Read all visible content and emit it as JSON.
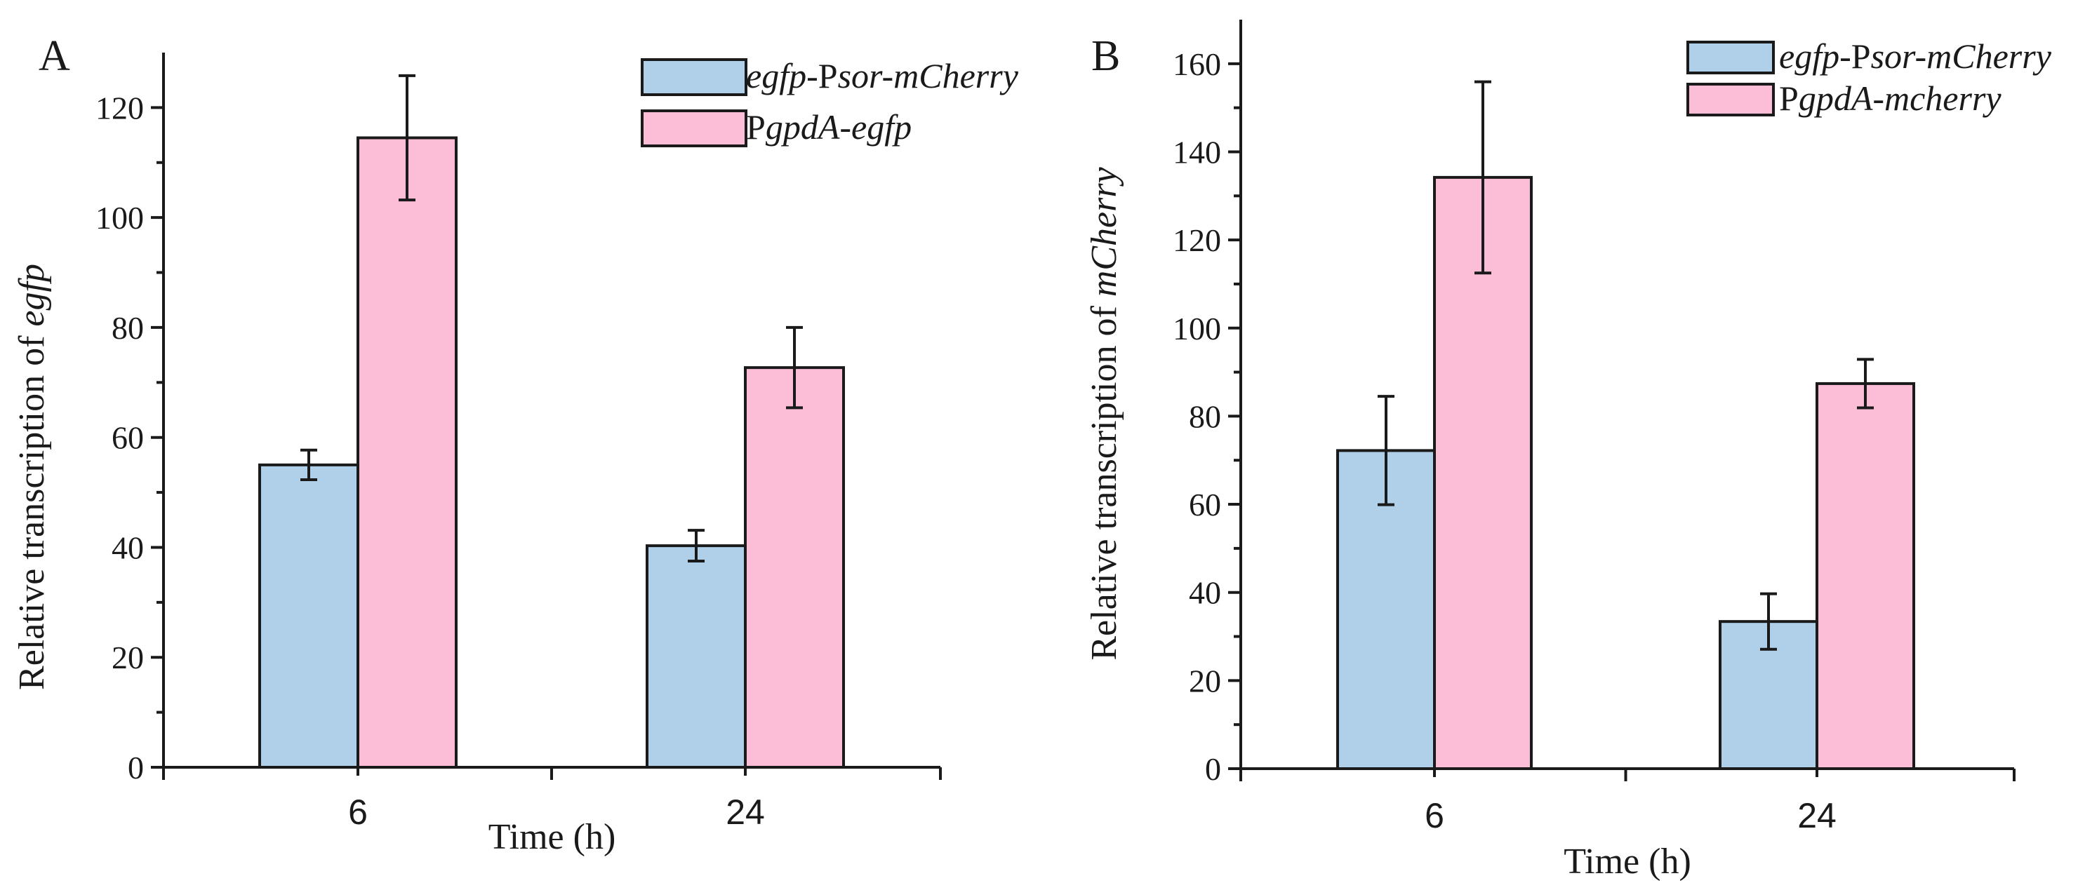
{
  "chart_data": [
    {
      "panel_label": "A",
      "type": "bar",
      "categories": [
        "6",
        "24"
      ],
      "xlabel": "Time (h)",
      "ylabel_prefix": "Relative transcription of ",
      "ylabel_gene": "egfp",
      "ylim": [
        0,
        130
      ],
      "yticks": [
        0,
        20,
        40,
        60,
        80,
        100,
        120
      ],
      "legend_position": "top-right",
      "series": [
        {
          "name": "egfp-Psor-mCherry",
          "legend_parts": [
            {
              "t": "egfp",
              "i": true
            },
            {
              "t": "-P",
              "i": false
            },
            {
              "t": "sor-mCherry",
              "i": true
            }
          ],
          "color": "#b0cfe8",
          "values": [
            55,
            40.3
          ],
          "errors": [
            2.7,
            2.8
          ]
        },
        {
          "name": "PgpdA-egfp",
          "legend_parts": [
            {
              "t": "P",
              "i": false
            },
            {
              "t": "gpdA-egfp",
              "i": true
            }
          ],
          "color": "#fcbdd7",
          "values": [
            114.5,
            72.7
          ],
          "errors": [
            11.3,
            7.3
          ]
        }
      ]
    },
    {
      "panel_label": "B",
      "type": "bar",
      "categories": [
        "6",
        "24"
      ],
      "xlabel": "Time (h)",
      "ylabel_prefix": "Relative transcription of ",
      "ylabel_gene": "mCherry",
      "ylim": [
        0,
        170
      ],
      "yticks": [
        0,
        20,
        40,
        60,
        80,
        100,
        120,
        140,
        160
      ],
      "legend_position": "top-right",
      "series": [
        {
          "name": "egfp-Psor-mCherry",
          "legend_parts": [
            {
              "t": "egfp",
              "i": true
            },
            {
              "t": "-P",
              "i": false
            },
            {
              "t": "sor-mCherry",
              "i": true
            }
          ],
          "color": "#b0cfe8",
          "values": [
            72.2,
            33.4
          ],
          "errors": [
            12.3,
            6.3
          ]
        },
        {
          "name": "PgpdA-mcherry",
          "legend_parts": [
            {
              "t": "P",
              "i": false
            },
            {
              "t": "gpdA-mcherry",
              "i": true
            }
          ],
          "color": "#fcbdd7",
          "values": [
            134.2,
            87.4
          ],
          "errors": [
            21.7,
            5.5
          ]
        }
      ]
    }
  ]
}
